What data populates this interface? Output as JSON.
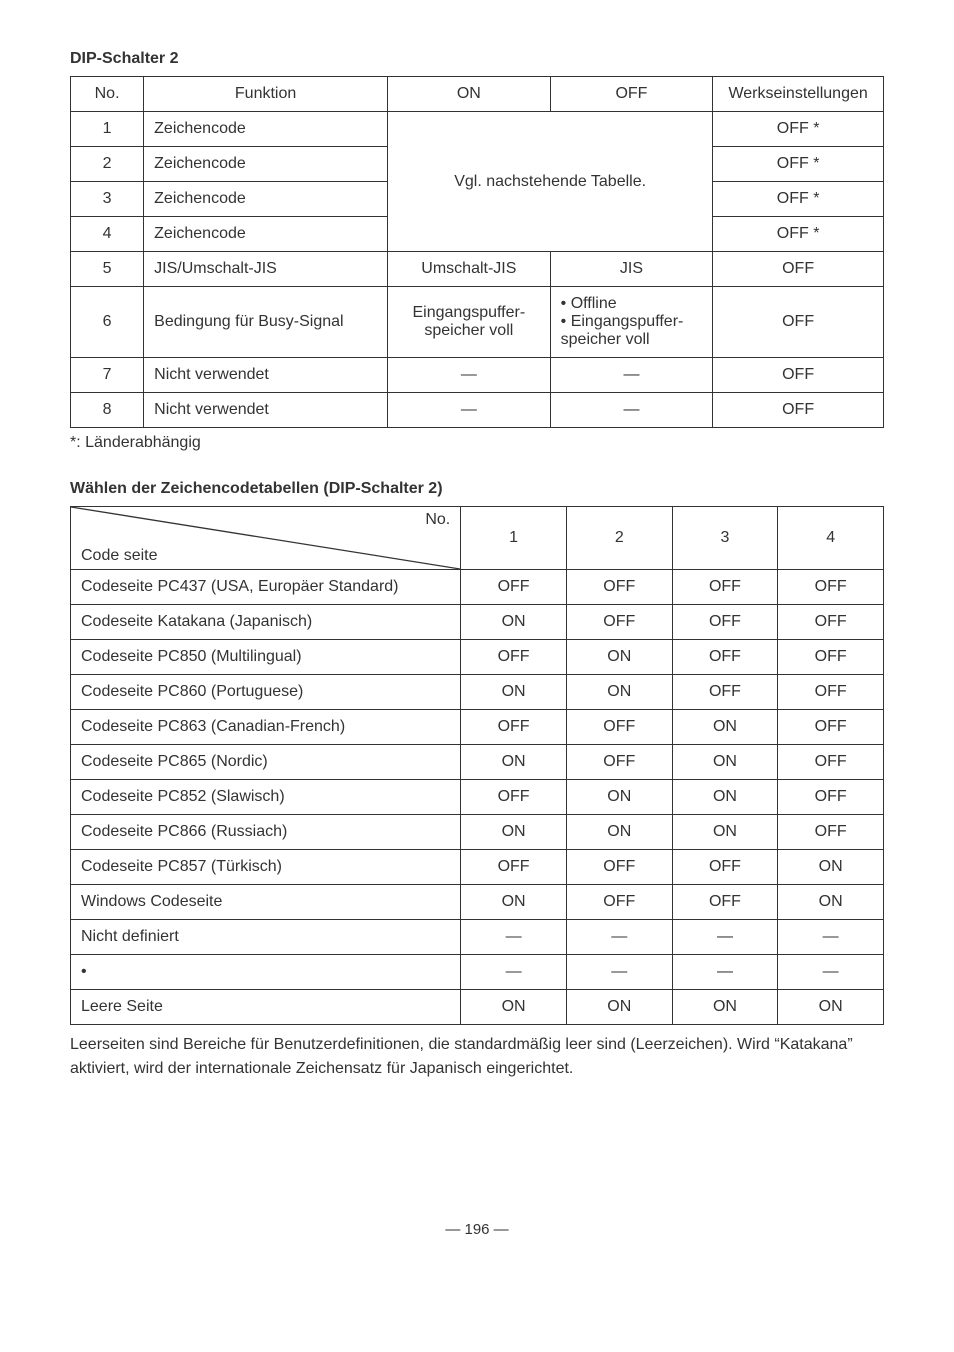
{
  "heading1": "DIP-Schalter 2",
  "table1": {
    "headers": [
      "No.",
      "Funktion",
      "ON",
      "OFF",
      "Werkseinstellungen"
    ],
    "merged_text": "Vgl. nachstehende Tabelle.",
    "rows": [
      {
        "no": "1",
        "func": "Zeichencode",
        "set": "OFF *"
      },
      {
        "no": "2",
        "func": "Zeichencode",
        "set": "OFF *"
      },
      {
        "no": "3",
        "func": "Zeichencode",
        "set": "OFF *"
      },
      {
        "no": "4",
        "func": "Zeichencode",
        "set": "OFF *"
      }
    ],
    "row5": {
      "no": "5",
      "func": "JIS/Umschalt-JIS",
      "on": "Umschalt-JIS",
      "off": "JIS",
      "set": "OFF"
    },
    "row6": {
      "no": "6",
      "func": "Bedingung für Busy-Signal",
      "on": "Eingangspuffer-speicher voll",
      "off_lines": [
        "• Offline",
        "• Eingangspuffer-",
        "  speicher voll"
      ],
      "set": "OFF"
    },
    "row7": {
      "no": "7",
      "func": "Nicht verwendet",
      "on": "—",
      "off": "—",
      "set": "OFF"
    },
    "row8": {
      "no": "8",
      "func": "Nicht verwendet",
      "on": "—",
      "off": "—",
      "set": "OFF"
    }
  },
  "note1": "*: Länderabhängig",
  "heading2": "Wählen der Zeichencodetabellen (DIP-Schalter 2)",
  "table2": {
    "diag_top": "No.",
    "diag_bottom": "Code seite",
    "col_headers": [
      "1",
      "2",
      "3",
      "4"
    ],
    "rows": [
      {
        "label": "Codeseite PC437 (USA, Europäer Standard)",
        "v": [
          "OFF",
          "OFF",
          "OFF",
          "OFF"
        ]
      },
      {
        "label": "Codeseite Katakana (Japanisch)",
        "v": [
          "ON",
          "OFF",
          "OFF",
          "OFF"
        ]
      },
      {
        "label": "Codeseite PC850 (Multilingual)",
        "v": [
          "OFF",
          "ON",
          "OFF",
          "OFF"
        ]
      },
      {
        "label": "Codeseite PC860 (Portuguese)",
        "v": [
          "ON",
          "ON",
          "OFF",
          "OFF"
        ]
      },
      {
        "label": "Codeseite PC863 (Canadian-French)",
        "v": [
          "OFF",
          "OFF",
          "ON",
          "OFF"
        ]
      },
      {
        "label": "Codeseite PC865 (Nordic)",
        "v": [
          "ON",
          "OFF",
          "ON",
          "OFF"
        ]
      },
      {
        "label": "Codeseite PC852 (Slawisch)",
        "v": [
          "OFF",
          "ON",
          "ON",
          "OFF"
        ]
      },
      {
        "label": "Codeseite PC866 (Russiach)",
        "v": [
          "ON",
          "ON",
          "ON",
          "OFF"
        ]
      },
      {
        "label": "Codeseite PC857 (Türkisch)",
        "v": [
          "OFF",
          "OFF",
          "OFF",
          "ON"
        ]
      },
      {
        "label": "Windows Codeseite",
        "v": [
          "ON",
          "OFF",
          "OFF",
          "ON"
        ]
      },
      {
        "label": "Nicht definiert",
        "v": [
          "—",
          "—",
          "—",
          "—"
        ]
      },
      {
        "label": "•",
        "v": [
          "—",
          "—",
          "—",
          "—"
        ]
      },
      {
        "label": "Leere Seite",
        "v": [
          "ON",
          "ON",
          "ON",
          "ON"
        ]
      }
    ]
  },
  "paragraph": "Leerseiten sind Bereiche für Benutzerdefinitionen, die standardmäßig leer sind (Leerzeichen). Wird “Katakana” aktiviert, wird der internationale Zeichensatz für Japanisch eingerichtet.",
  "page_number": "— 196 —",
  "colors": {
    "border": "#333333",
    "text": "#333333",
    "bg": "#ffffff"
  }
}
